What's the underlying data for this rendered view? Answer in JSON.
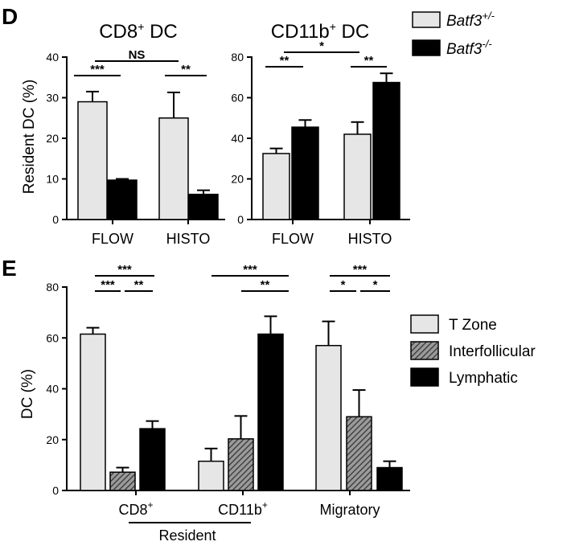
{
  "chart_data": [
    {
      "panel": "D",
      "type": "bar",
      "title": "CD8",
      "title_sup": "+",
      "title_suffix": " DC",
      "ylabel": "Resident DC (%)",
      "ylim": [
        0,
        40
      ],
      "yticks": [
        "0",
        "10",
        "20",
        "30",
        "40"
      ],
      "categories": [
        "FLOW",
        "HISTO"
      ],
      "series": [
        {
          "name": "Batf3",
          "name_sup": "+/-",
          "color": "#e6e6e6",
          "values": [
            29,
            25
          ],
          "errors": [
            2.5,
            6.3
          ]
        },
        {
          "name": "Batf3",
          "name_sup": "-/-",
          "color": "#000000",
          "values": [
            9.7,
            6.2
          ],
          "errors": [
            0.3,
            1.0
          ]
        }
      ],
      "significance": [
        {
          "label": "***"
        },
        {
          "label": "NS"
        },
        {
          "label": "**"
        }
      ]
    },
    {
      "panel": "",
      "type": "bar",
      "title": "CD11b",
      "title_sup": "+",
      "title_suffix": " DC",
      "ylabel": "",
      "ylim": [
        0,
        80
      ],
      "yticks": [
        "0",
        "20",
        "40",
        "60",
        "80"
      ],
      "categories": [
        "FLOW",
        "HISTO"
      ],
      "series": [
        {
          "name": "Batf3",
          "name_sup": "+/-",
          "color": "#e6e6e6",
          "values": [
            32.5,
            42
          ],
          "errors": [
            2.5,
            6
          ]
        },
        {
          "name": "Batf3",
          "name_sup": "-/-",
          "color": "#000000",
          "values": [
            45.5,
            67.5
          ],
          "errors": [
            3.5,
            4.5
          ]
        }
      ],
      "significance": [
        {
          "label": "**"
        },
        {
          "label": "*"
        },
        {
          "label": "**"
        }
      ]
    },
    {
      "panel": "E",
      "type": "bar",
      "title": "",
      "ylabel": "DC (%)",
      "ylim": [
        0,
        80
      ],
      "yticks": [
        "0",
        "20",
        "40",
        "60",
        "80"
      ],
      "categories": [
        "CD8",
        "CD11b",
        "Migratory"
      ],
      "category_sups": [
        "+",
        "+",
        ""
      ],
      "group_label": "Resident",
      "series": [
        {
          "name": "T Zone",
          "color": "#e6e6e6",
          "pattern": "solid",
          "values": [
            61.5,
            11.5,
            57
          ],
          "errors": [
            2.5,
            5,
            9.5
          ]
        },
        {
          "name": "Interfollicular",
          "color": "#666666",
          "pattern": "hatched",
          "values": [
            7.2,
            20.3,
            29
          ],
          "errors": [
            1.8,
            9,
            10.5
          ]
        },
        {
          "name": "Lymphatic",
          "color": "#000000",
          "pattern": "solid",
          "values": [
            24.3,
            61.5,
            9
          ],
          "errors": [
            3,
            7,
            2.5
          ]
        }
      ],
      "significance": [
        {
          "label": "***"
        },
        {
          "label": "***"
        },
        {
          "label": "**"
        },
        {
          "label": "***"
        },
        {
          "label": "**"
        },
        {
          "label": "***"
        },
        {
          "label": "*"
        },
        {
          "label": "*"
        }
      ]
    }
  ]
}
